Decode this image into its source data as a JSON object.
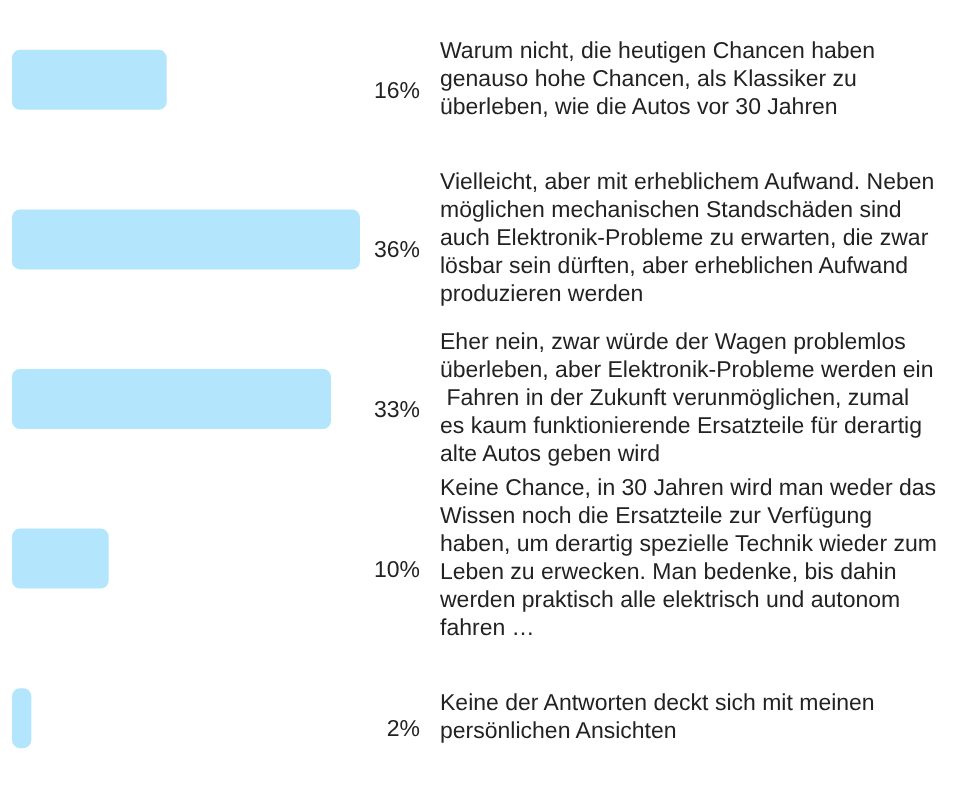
{
  "chart_data": {
    "type": "bar",
    "orientation": "horizontal",
    "categories": [
      "Warum nicht, die heutigen Chancen haben genauso hohe Chancen, als Klassiker zu überleben, wie die Autos vor 30 Jahren",
      "Vielleicht, aber mit erheblichem Aufwand. Neben möglichen mechanischen Standschäden sind auch Elektronik-Probleme zu erwarten, die zwar lösbar sein dürften, aber erheblichen Aufwand produzieren werden",
      "Eher nein, zwar würde der Wagen problemlos überleben, aber Elektronik-Probleme werden ein Fahren in der Zukunft verunmöglichen, zumal es kaum funktionierende Ersatzteile für derartig alte Autos geben wird",
      "Keine Chance, in 30 Jahren wird man weder das Wissen noch die Ersatzteile zur Verfügung haben, um derartig spezielle Technik wieder zum Leben zu erwecken. Man bedenke, bis dahin werden praktisch alle elektrisch und autonom fahren …",
      "Keine der Antworten deckt sich mit meinen persönlichen Ansichten"
    ],
    "values": [
      16,
      36,
      33,
      10,
      2
    ],
    "value_labels": [
      "16%",
      "36%",
      "33%",
      "10%",
      "2%"
    ],
    "color": "#b3e5fc"
  }
}
